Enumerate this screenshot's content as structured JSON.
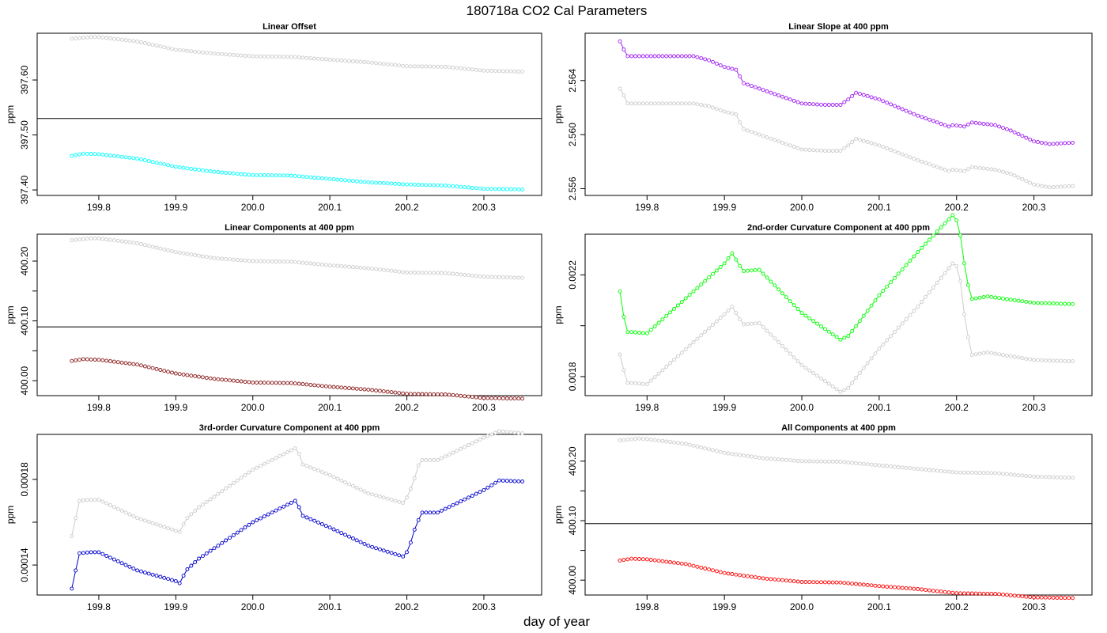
{
  "page": {
    "title": "180718a   CO2 Cal Parameters",
    "xlabel": "day of year"
  },
  "chart_data": [
    {
      "type": "scatter",
      "title": "Linear Offset",
      "ylabel": "ppm",
      "xlim": [
        199.72,
        200.375
      ],
      "ylim": [
        397.39,
        397.685
      ],
      "xticks": [
        199.8,
        199.9,
        200.0,
        200.1,
        200.2,
        200.3
      ],
      "yticks": [
        397.4,
        397.5,
        397.6
      ],
      "ytick_labels": [
        "397.40",
        "397.50",
        "397.60"
      ],
      "hline": 397.53,
      "series": [
        {
          "color": "#cccccc",
          "x": [
            199.765,
            199.79,
            199.8,
            199.85,
            199.9,
            199.95,
            200.0,
            200.05,
            200.1,
            200.15,
            200.2,
            200.25,
            200.3,
            200.35
          ],
          "values": [
            397.675,
            397.678,
            397.678,
            397.67,
            397.655,
            397.648,
            397.643,
            397.642,
            397.637,
            397.632,
            397.625,
            397.624,
            397.617,
            397.615
          ],
          "connect": false
        },
        {
          "color": "#00ffff",
          "x": [
            199.765,
            199.78,
            199.8,
            199.85,
            199.9,
            199.95,
            200.0,
            200.05,
            200.1,
            200.15,
            200.2,
            200.25,
            200.3,
            200.35
          ],
          "values": [
            397.462,
            397.466,
            397.465,
            397.457,
            397.442,
            397.433,
            397.427,
            397.426,
            397.42,
            397.414,
            397.41,
            397.408,
            397.402,
            397.401
          ],
          "connect": false
        }
      ]
    },
    {
      "type": "scatter",
      "title": "Linear Slope at 400 ppm",
      "ylabel": "ppm",
      "xlim": [
        199.72,
        200.375
      ],
      "ylim": [
        2.5555,
        2.5675
      ],
      "xticks": [
        199.8,
        199.9,
        200.0,
        200.1,
        200.2,
        200.3
      ],
      "yticks": [
        2.556,
        2.56,
        2.564
      ],
      "ytick_labels": [
        "2.556",
        "2.560",
        "2.564"
      ],
      "series": [
        {
          "color": "#cccccc",
          "x": [
            199.765,
            199.77,
            199.775,
            199.78,
            199.8,
            199.83,
            199.86,
            199.88,
            199.9,
            199.915,
            199.92,
            199.925,
            199.95,
            200.0,
            200.03,
            200.05,
            200.06,
            200.07,
            200.1,
            200.15,
            200.19,
            200.195,
            200.21,
            200.22,
            200.25,
            200.27,
            200.3,
            200.32,
            200.35
          ],
          "values": [
            2.5634,
            2.5629,
            2.5623,
            2.5623,
            2.5623,
            2.5623,
            2.5623,
            2.5621,
            2.5617,
            2.5615,
            2.5609,
            2.5604,
            2.5599,
            2.5589,
            2.5588,
            2.5588,
            2.5592,
            2.5597,
            2.5592,
            2.5581,
            2.5573,
            2.5574,
            2.5573,
            2.5576,
            2.5574,
            2.5571,
            2.5563,
            2.5561,
            2.5562
          ],
          "connect": true
        },
        {
          "color": "#a020f0",
          "x": [
            199.765,
            199.77,
            199.775,
            199.78,
            199.8,
            199.83,
            199.86,
            199.88,
            199.9,
            199.915,
            199.92,
            199.925,
            199.95,
            200.0,
            200.03,
            200.05,
            200.06,
            200.07,
            200.1,
            200.15,
            200.19,
            200.195,
            200.21,
            200.22,
            200.25,
            200.27,
            200.3,
            200.32,
            200.35
          ],
          "values": [
            2.5669,
            2.5663,
            2.5658,
            2.5658,
            2.5658,
            2.5658,
            2.5658,
            2.5655,
            2.565,
            2.5648,
            2.5643,
            2.5638,
            2.5633,
            2.5623,
            2.5622,
            2.5622,
            2.5626,
            2.5631,
            2.5626,
            2.5614,
            2.5606,
            2.5607,
            2.5606,
            2.5609,
            2.5607,
            2.5603,
            2.5595,
            2.5593,
            2.5594
          ],
          "connect": true
        }
      ]
    },
    {
      "type": "scatter",
      "title": "Linear Components at 400 ppm",
      "ylabel": "ppm",
      "xlim": [
        199.72,
        200.375
      ],
      "ylim": [
        399.975,
        400.245
      ],
      "xticks": [
        199.8,
        199.9,
        200.0,
        200.1,
        200.2,
        200.3
      ],
      "yticks": [
        400.0,
        400.05,
        400.1,
        400.15,
        400.2
      ],
      "ytick_labels": [
        "400.00",
        "",
        "400.10",
        "",
        "400.20"
      ],
      "hline": 400.09,
      "series": [
        {
          "color": "#cccccc",
          "x": [
            199.765,
            199.79,
            199.8,
            199.85,
            199.9,
            199.95,
            200.0,
            200.05,
            200.1,
            200.15,
            200.2,
            200.25,
            200.3,
            200.35
          ],
          "values": [
            400.235,
            400.238,
            400.238,
            400.23,
            400.215,
            400.205,
            400.2,
            400.199,
            400.193,
            400.188,
            400.181,
            400.18,
            400.174,
            400.172
          ],
          "connect": false
        },
        {
          "color": "#8b1a1a",
          "x": [
            199.765,
            199.78,
            199.8,
            199.85,
            199.9,
            199.95,
            200.0,
            200.05,
            200.1,
            200.15,
            200.2,
            200.25,
            200.3,
            200.35
          ],
          "values": [
            400.033,
            400.036,
            400.035,
            400.027,
            400.012,
            400.003,
            399.997,
            399.996,
            399.99,
            399.985,
            399.978,
            399.977,
            399.971,
            399.97
          ],
          "connect": false
        }
      ]
    },
    {
      "type": "scatter",
      "title": "2nd-order Curvature Component at 400 ppm",
      "ylabel": "ppm",
      "xlim": [
        199.72,
        200.375
      ],
      "ylim": [
        0.001725,
        0.00236
      ],
      "xticks": [
        199.8,
        199.9,
        200.0,
        200.1,
        200.2,
        200.3
      ],
      "yticks": [
        0.0018,
        0.002,
        0.0022
      ],
      "ytick_labels": [
        "0.0018",
        "",
        "0.0022"
      ],
      "series": [
        {
          "color": "#cccccc",
          "x": [
            199.765,
            199.77,
            199.775,
            199.78,
            199.8,
            199.9,
            199.91,
            199.915,
            199.92,
            199.925,
            199.945,
            200.0,
            200.05,
            200.06,
            200.07,
            200.1,
            200.15,
            200.195,
            200.2,
            200.205,
            200.21,
            200.215,
            200.22,
            200.24,
            200.3,
            200.35
          ],
          "values": [
            0.001887,
            0.001825,
            0.001775,
            0.001775,
            0.00177,
            0.002045,
            0.002075,
            0.00205,
            0.002025,
            0.002005,
            0.00201,
            0.001845,
            0.00174,
            0.001755,
            0.001795,
            0.00191,
            0.002075,
            0.002245,
            0.002235,
            0.002175,
            0.002045,
            0.001955,
            0.001885,
            0.001895,
            0.001865,
            0.00186
          ],
          "connect": true
        },
        {
          "color": "#00ff00",
          "x": [
            199.765,
            199.77,
            199.775,
            199.78,
            199.8,
            199.9,
            199.91,
            199.915,
            199.92,
            199.925,
            199.945,
            200.0,
            200.05,
            200.06,
            200.07,
            200.1,
            200.15,
            200.195,
            200.2,
            200.205,
            200.21,
            200.215,
            200.22,
            200.24,
            200.3,
            200.35
          ],
          "values": [
            0.002135,
            0.002035,
            0.001975,
            0.001975,
            0.00197,
            0.002245,
            0.002285,
            0.00226,
            0.002235,
            0.002215,
            0.00222,
            0.00205,
            0.001945,
            0.00196,
            0.001998,
            0.00212,
            0.00229,
            0.002435,
            0.002415,
            0.002355,
            0.002245,
            0.00216,
            0.002105,
            0.002115,
            0.00209,
            0.002085
          ],
          "connect": true
        }
      ]
    },
    {
      "type": "scatter",
      "title": "3rd-order Curvature Component at 400 ppm",
      "ylabel": "ppm",
      "xlim": [
        199.72,
        200.375
      ],
      "ylim": [
        0.000126,
        0.000201
      ],
      "xticks": [
        199.8,
        199.9,
        200.0,
        200.1,
        200.2,
        200.3
      ],
      "yticks": [
        0.00014,
        0.00016,
        0.00018
      ],
      "ytick_labels": [
        "0.00014",
        "",
        "0.00018"
      ],
      "series": [
        {
          "color": "#cccccc",
          "x": [
            199.765,
            199.77,
            199.775,
            199.79,
            199.8,
            199.85,
            199.9,
            199.905,
            199.91,
            199.915,
            199.93,
            200.0,
            200.055,
            200.06,
            200.065,
            200.1,
            200.15,
            200.195,
            200.2,
            200.205,
            200.21,
            200.215,
            200.22,
            200.24,
            200.3,
            200.32,
            200.35
          ],
          "values": [
            0.0001535,
            0.000162,
            0.00017,
            0.0001705,
            0.0001705,
            0.000162,
            0.000156,
            0.0001555,
            0.000159,
            0.000162,
            0.000167,
            0.0001845,
            0.0001945,
            0.000192,
            0.000187,
            0.000182,
            0.0001735,
            0.000169,
            0.0001715,
            0.0001755,
            0.0001805,
            0.0001865,
            0.000189,
            0.000189,
            0.0001995,
            0.0002025,
            0.0002015
          ],
          "connect": true
        },
        {
          "color": "#0000cc",
          "x": [
            199.765,
            199.77,
            199.775,
            199.79,
            199.8,
            199.85,
            199.9,
            199.905,
            199.91,
            199.915,
            199.93,
            200.0,
            200.055,
            200.06,
            200.065,
            200.1,
            200.15,
            200.195,
            200.2,
            200.205,
            200.21,
            200.215,
            200.22,
            200.24,
            200.3,
            200.32,
            200.35
          ],
          "values": [
            0.000129,
            0.0001375,
            0.0001455,
            0.000146,
            0.000146,
            0.0001375,
            0.0001325,
            0.0001315,
            0.000135,
            0.000138,
            0.000143,
            0.00016,
            0.00017,
            0.000167,
            0.000163,
            0.0001575,
            0.000149,
            0.000144,
            0.000146,
            0.0001505,
            0.0001565,
            0.000161,
            0.0001645,
            0.0001645,
            0.000175,
            0.0001795,
            0.000179
          ],
          "connect": true
        }
      ]
    },
    {
      "type": "scatter",
      "title": "All Components at 400 ppm",
      "ylabel": "ppm",
      "xlim": [
        199.72,
        200.375
      ],
      "ylim": [
        399.975,
        400.245
      ],
      "xticks": [
        199.8,
        199.9,
        200.0,
        200.1,
        200.2,
        200.3
      ],
      "yticks": [
        400.0,
        400.05,
        400.1,
        400.15,
        400.2
      ],
      "ytick_labels": [
        "400.00",
        "",
        "400.10",
        "",
        "400.20"
      ],
      "hline": 400.095,
      "series": [
        {
          "color": "#cccccc",
          "x": [
            199.765,
            199.79,
            199.8,
            199.85,
            199.9,
            199.95,
            200.0,
            200.05,
            200.1,
            200.15,
            200.2,
            200.25,
            200.3,
            200.35
          ],
          "values": [
            400.235,
            400.238,
            400.237,
            400.229,
            400.214,
            400.205,
            400.2,
            400.199,
            400.193,
            400.187,
            400.181,
            400.18,
            400.174,
            400.172
          ],
          "connect": false
        },
        {
          "color": "#ff0000",
          "x": [
            199.765,
            199.78,
            199.8,
            199.85,
            199.9,
            199.95,
            200.0,
            200.05,
            200.1,
            200.15,
            200.2,
            200.25,
            200.3,
            200.35
          ],
          "values": [
            400.033,
            400.036,
            400.035,
            400.027,
            400.012,
            400.003,
            399.997,
            399.996,
            399.99,
            399.985,
            399.978,
            399.977,
            399.971,
            399.97
          ],
          "connect": false
        }
      ]
    }
  ]
}
